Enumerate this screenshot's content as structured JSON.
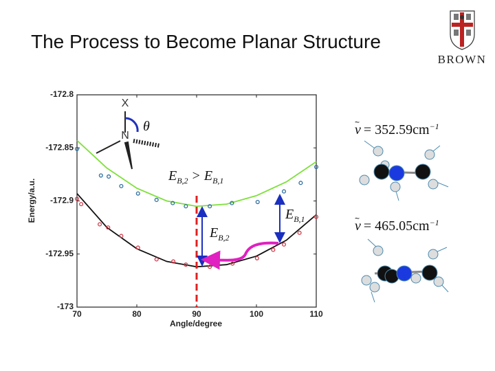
{
  "slide": {
    "title": "The Process to Become Planar Structure",
    "logo_text": "BROWN",
    "freq1": {
      "symbol": "ν",
      "value": "= 352.59cm",
      "sup": "−1"
    },
    "freq2": {
      "symbol": "ν",
      "value": "= 465.05cm",
      "sup": "−1"
    }
  },
  "chart_data": {
    "type": "scatter",
    "xlabel": "Angle/degree",
    "ylabel": "Energy/a.u.",
    "xlim": [
      70,
      110
    ],
    "ylim": [
      -173,
      -172.8
    ],
    "xticks": [
      70,
      80,
      90,
      100,
      110
    ],
    "yticks": [
      -173,
      -172.95,
      -172.9,
      -172.85,
      -172.8
    ],
    "series": [
      {
        "mode": "line",
        "color": "#7ee03a",
        "x": [
          70,
          75,
          80,
          85,
          90,
          95,
          100,
          105,
          110
        ],
        "values": [
          -172.843,
          -172.869,
          -172.888,
          -172.9,
          -172.905,
          -172.903,
          -172.895,
          -172.882,
          -172.863
        ]
      },
      {
        "mode": "markers",
        "color": "#2f6fa0",
        "x": [
          70,
          74,
          75.3,
          77.4,
          80.2,
          83.3,
          86,
          88.2,
          92.2,
          95.9,
          100.2,
          104.6,
          107.4,
          110
        ],
        "values": [
          -172.851,
          -172.876,
          -172.877,
          -172.886,
          -172.893,
          -172.899,
          -172.902,
          -172.905,
          -172.905,
          -172.902,
          -172.901,
          -172.891,
          -172.883,
          -172.868
        ]
      },
      {
        "mode": "line",
        "color": "#111111",
        "x": [
          70,
          75,
          80,
          85,
          90,
          95,
          100,
          105,
          110
        ],
        "values": [
          -172.893,
          -172.925,
          -172.945,
          -172.957,
          -172.962,
          -172.96,
          -172.952,
          -172.937,
          -172.913
        ]
      },
      {
        "mode": "markers",
        "color": "#d03a4a",
        "x": [
          70,
          70.7,
          73.8,
          75.2,
          77.4,
          80.2,
          83.3,
          86.1,
          88.2,
          92.2,
          96,
          100.1,
          102.8,
          104.6,
          107.2,
          110
        ],
        "values": [
          -172.898,
          -172.903,
          -172.922,
          -172.925,
          -172.933,
          -172.944,
          -172.955,
          -172.957,
          -172.96,
          -172.962,
          -172.959,
          -172.954,
          -172.946,
          -172.941,
          -172.93,
          -172.915
        ]
      }
    ],
    "annotations": {
      "x_atom": "X",
      "n_atom": "N",
      "theta": "θ",
      "compare": {
        "left": "E",
        "left_sub": "B,2",
        "op": ">",
        "right": "E",
        "right_sub": "B,1"
      },
      "eb1": {
        "base": "E",
        "sub": "B,1"
      },
      "eb2": {
        "base": "E",
        "sub": "B,2"
      }
    }
  }
}
